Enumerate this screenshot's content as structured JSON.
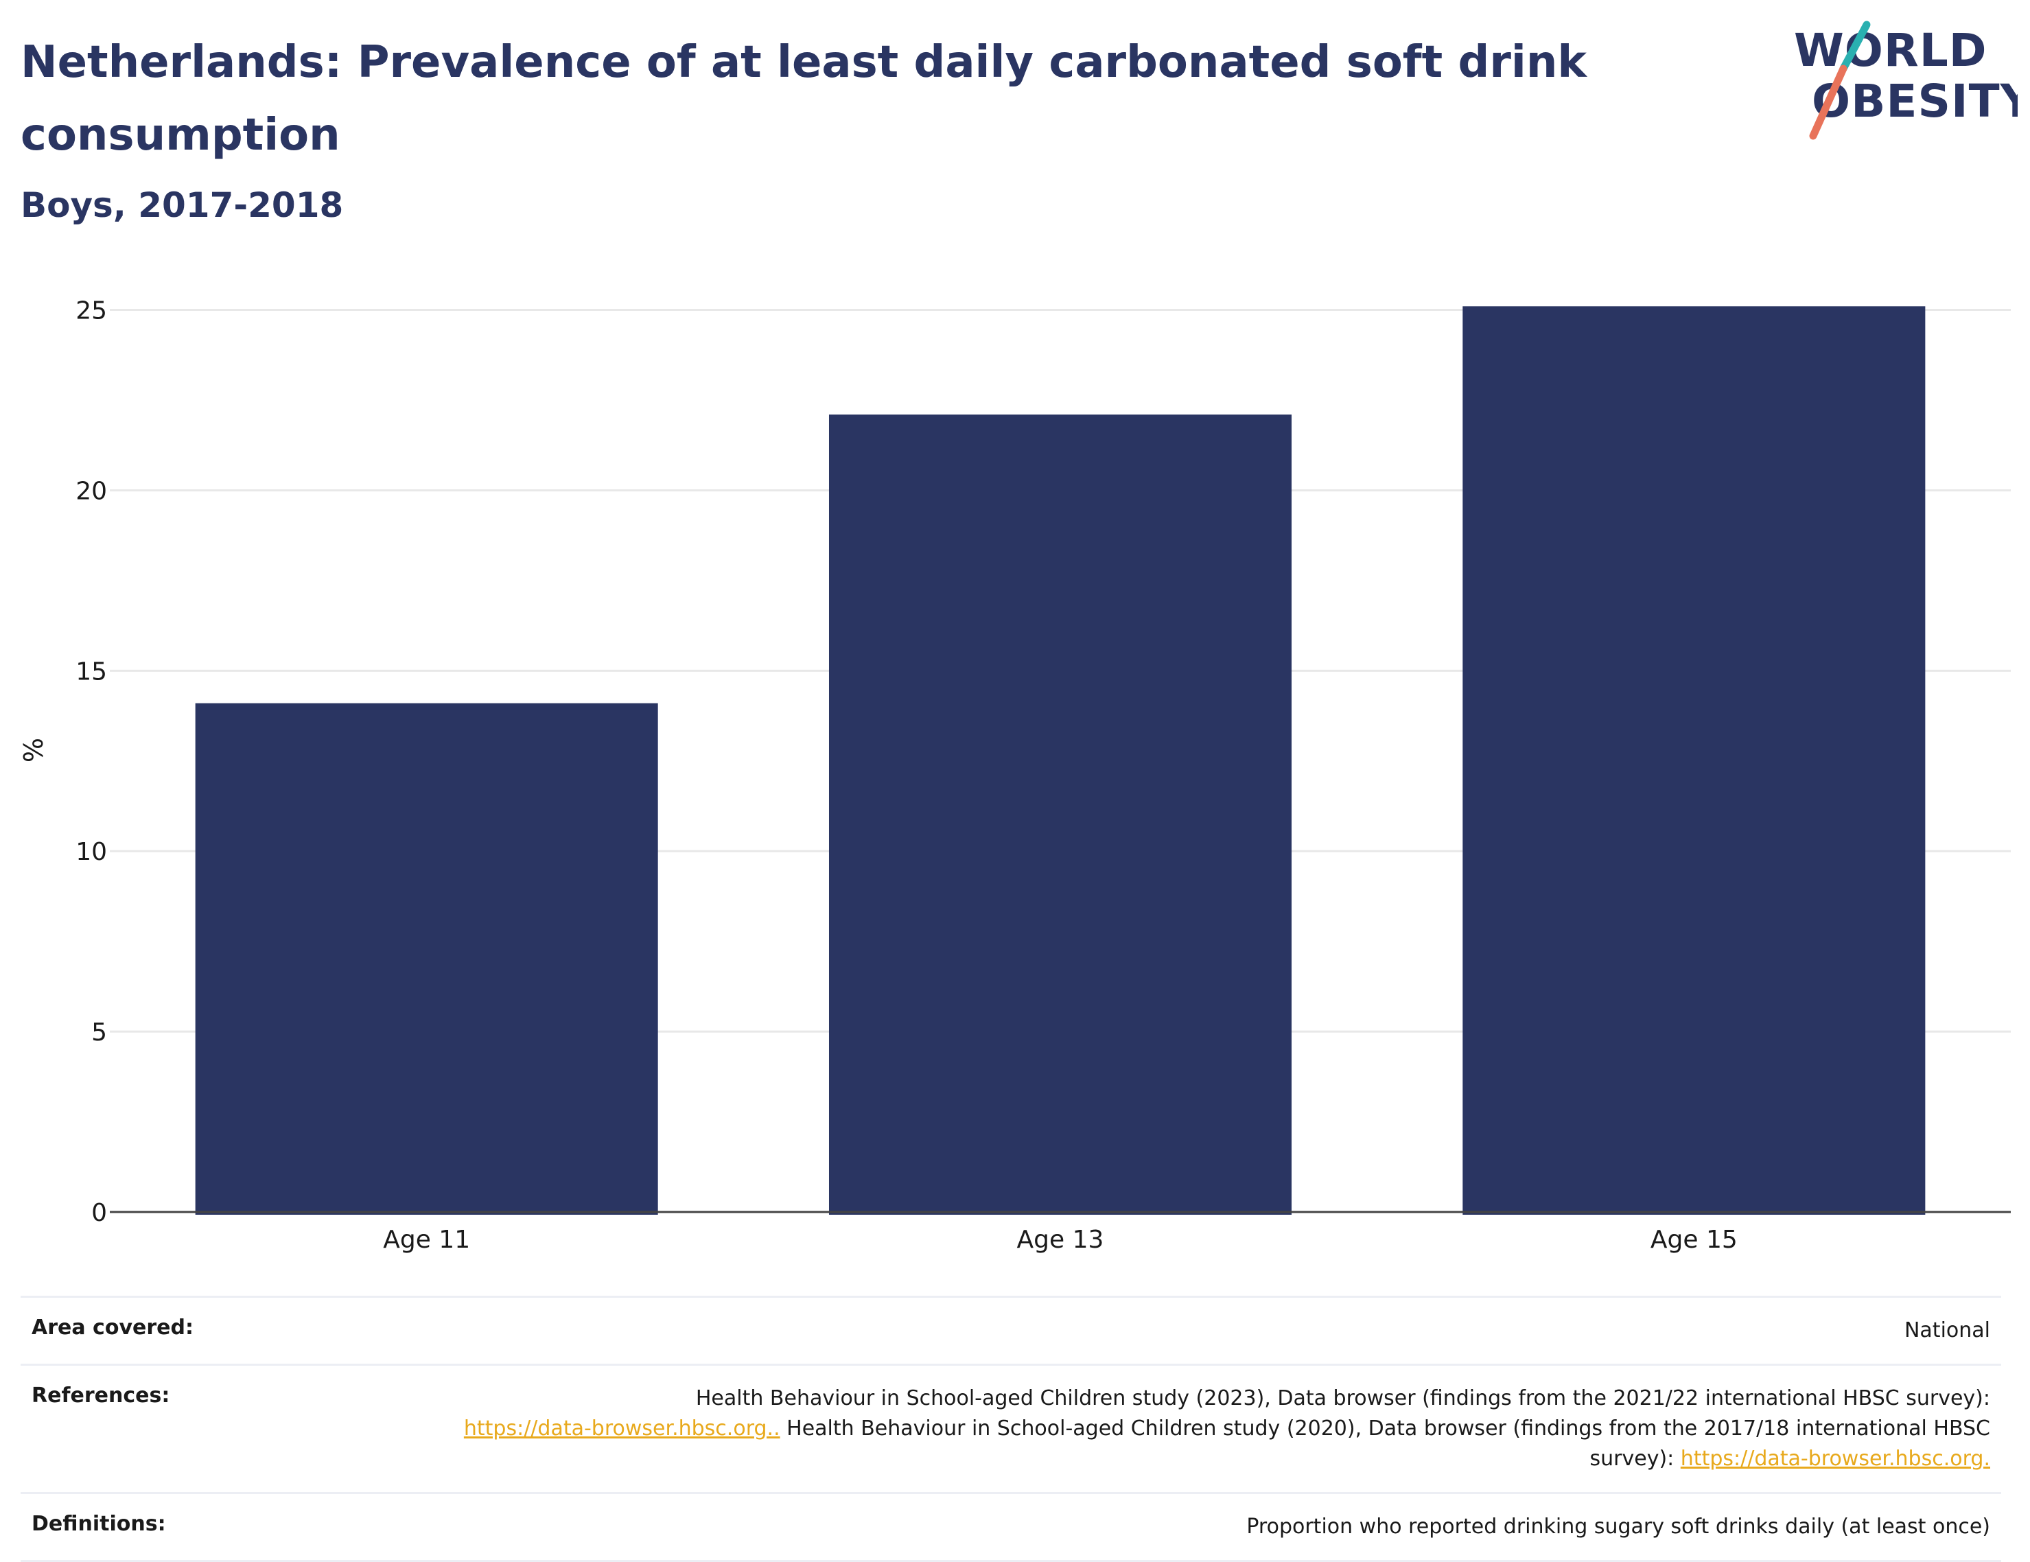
{
  "header": {
    "title": "Netherlands: Prevalence of at least daily carbonated soft drink consumption",
    "subtitle": "Boys, 2017-2018"
  },
  "logo": {
    "line1": "WORLD",
    "line2": "OBESITY",
    "slash_top_color": "#2ab0b0",
    "slash_bottom_color": "#e8735a"
  },
  "chart_data": {
    "type": "bar",
    "categories": [
      "Age 11",
      "Age 13",
      "Age 15"
    ],
    "values": [
      14.1,
      22.1,
      25.1
    ],
    "ylabel": "%",
    "xlabel": "",
    "ylim": [
      0,
      25.6
    ],
    "yticks": [
      0,
      5,
      10,
      15,
      20,
      25
    ],
    "grid": true,
    "bar_color": "#2a3562"
  },
  "info": {
    "area": {
      "label": "Area covered:",
      "value": "National"
    },
    "references": {
      "label": "References:",
      "part1": "Health Behaviour in School-aged Children study (2023), Data browser (findings from the 2021/22 international HBSC survey):",
      "link1": "https://data-browser.hbsc.org..",
      "part2": " Health Behaviour in School-aged Children study (2020), Data browser (findings from the 2017/18 international HBSC survey): ",
      "link2": "https://data-browser.hbsc.org."
    },
    "definitions": {
      "label": "Definitions:",
      "value": "Proportion who reported drinking sugary soft drinks daily (at least once)"
    }
  }
}
